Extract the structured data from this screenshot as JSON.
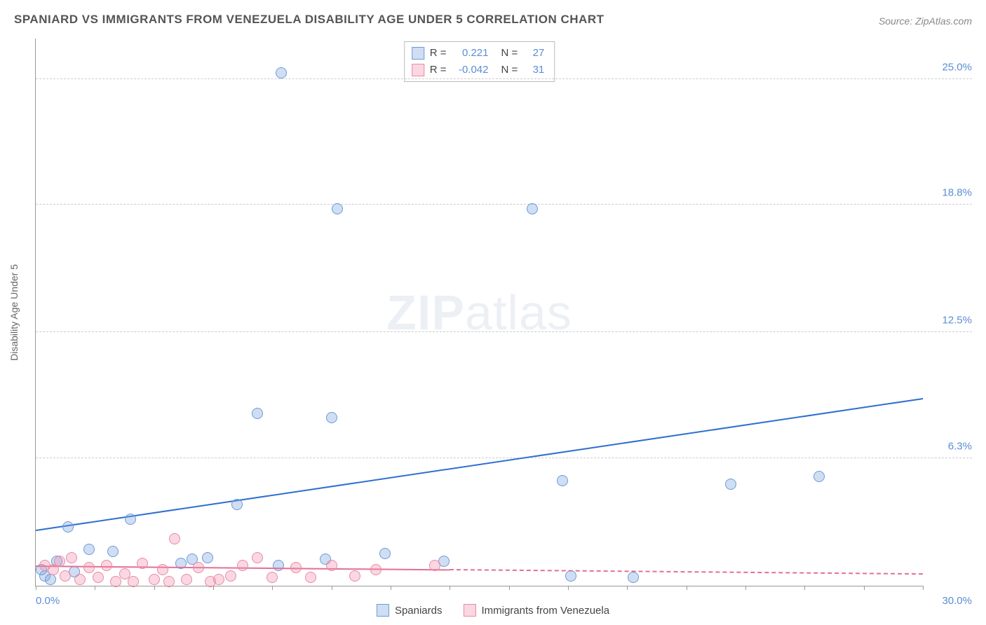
{
  "title": "SPANIARD VS IMMIGRANTS FROM VENEZUELA DISABILITY AGE UNDER 5 CORRELATION CHART",
  "source": "Source: ZipAtlas.com",
  "watermark_a": "ZIP",
  "watermark_b": "atlas",
  "y_axis_title": "Disability Age Under 5",
  "chart": {
    "type": "scatter",
    "xlim": [
      0,
      30
    ],
    "ylim": [
      0,
      27
    ],
    "x_ticks": [
      0,
      2,
      4,
      6,
      8,
      10,
      12,
      14,
      16,
      18,
      20,
      22,
      24,
      26,
      28,
      30
    ],
    "x_min_label": "0.0%",
    "x_max_label": "30.0%",
    "y_ticks": [
      {
        "v": 6.3,
        "label": "6.3%"
      },
      {
        "v": 12.5,
        "label": "12.5%"
      },
      {
        "v": 18.8,
        "label": "18.8%"
      },
      {
        "v": 25.0,
        "label": "25.0%"
      }
    ],
    "background": "#ffffff",
    "grid_color": "#cccccc",
    "series": [
      {
        "name": "Spaniards",
        "fill": "rgba(120,160,220,0.35)",
        "stroke": "#6a9bd8",
        "marker_radius": 8,
        "trend": {
          "color": "#2f6fd0",
          "width": 2.5,
          "x0": 0,
          "y0": 2.7,
          "x1": 30,
          "y1": 9.2
        },
        "R": "0.221",
        "N": "27",
        "points": [
          {
            "x": 8.3,
            "y": 25.3
          },
          {
            "x": 10.2,
            "y": 18.6
          },
          {
            "x": 16.8,
            "y": 18.6
          },
          {
            "x": 7.5,
            "y": 8.5
          },
          {
            "x": 10.0,
            "y": 8.3
          },
          {
            "x": 17.8,
            "y": 5.2
          },
          {
            "x": 23.5,
            "y": 5.0
          },
          {
            "x": 26.5,
            "y": 5.4
          },
          {
            "x": 6.8,
            "y": 4.0
          },
          {
            "x": 3.2,
            "y": 3.3
          },
          {
            "x": 1.1,
            "y": 2.9
          },
          {
            "x": 0.7,
            "y": 1.2
          },
          {
            "x": 0.3,
            "y": 0.5
          },
          {
            "x": 1.8,
            "y": 1.8
          },
          {
            "x": 2.6,
            "y": 1.7
          },
          {
            "x": 4.9,
            "y": 1.1
          },
          {
            "x": 5.3,
            "y": 1.3
          },
          {
            "x": 5.8,
            "y": 1.4
          },
          {
            "x": 8.2,
            "y": 1.0
          },
          {
            "x": 9.8,
            "y": 1.3
          },
          {
            "x": 11.8,
            "y": 1.6
          },
          {
            "x": 13.8,
            "y": 1.2
          },
          {
            "x": 18.1,
            "y": 0.5
          },
          {
            "x": 20.2,
            "y": 0.4
          },
          {
            "x": 0.2,
            "y": 0.8
          },
          {
            "x": 0.5,
            "y": 0.3
          },
          {
            "x": 1.3,
            "y": 0.7
          }
        ]
      },
      {
        "name": "Immigrants from Venezuela",
        "fill": "rgba(240,140,170,0.35)",
        "stroke": "#e88aa8",
        "marker_radius": 8,
        "trend": {
          "color": "#e36f95",
          "width": 2,
          "x0": 0,
          "y0": 0.95,
          "x1": 30,
          "y1": 0.55,
          "dash_from_x": 14
        },
        "R": "-0.042",
        "N": "31",
        "points": [
          {
            "x": 0.3,
            "y": 1.0
          },
          {
            "x": 0.6,
            "y": 0.8
          },
          {
            "x": 0.8,
            "y": 1.2
          },
          {
            "x": 1.0,
            "y": 0.5
          },
          {
            "x": 1.2,
            "y": 1.4
          },
          {
            "x": 1.5,
            "y": 0.3
          },
          {
            "x": 1.8,
            "y": 0.9
          },
          {
            "x": 2.1,
            "y": 0.4
          },
          {
            "x": 2.4,
            "y": 1.0
          },
          {
            "x": 2.7,
            "y": 0.2
          },
          {
            "x": 3.0,
            "y": 0.6
          },
          {
            "x": 3.3,
            "y": 0.2
          },
          {
            "x": 3.6,
            "y": 1.1
          },
          {
            "x": 4.0,
            "y": 0.3
          },
          {
            "x": 4.3,
            "y": 0.8
          },
          {
            "x": 4.5,
            "y": 0.2
          },
          {
            "x": 4.7,
            "y": 2.3
          },
          {
            "x": 5.1,
            "y": 0.3
          },
          {
            "x": 5.5,
            "y": 0.9
          },
          {
            "x": 5.9,
            "y": 0.2
          },
          {
            "x": 6.2,
            "y": 0.3
          },
          {
            "x": 6.6,
            "y": 0.5
          },
          {
            "x": 7.0,
            "y": 1.0
          },
          {
            "x": 7.5,
            "y": 1.4
          },
          {
            "x": 8.0,
            "y": 0.4
          },
          {
            "x": 8.8,
            "y": 0.9
          },
          {
            "x": 9.3,
            "y": 0.4
          },
          {
            "x": 10.0,
            "y": 1.0
          },
          {
            "x": 10.8,
            "y": 0.5
          },
          {
            "x": 11.5,
            "y": 0.8
          },
          {
            "x": 13.5,
            "y": 1.0
          }
        ]
      }
    ]
  },
  "stats_label_R": "R =",
  "stats_label_N": "N ="
}
